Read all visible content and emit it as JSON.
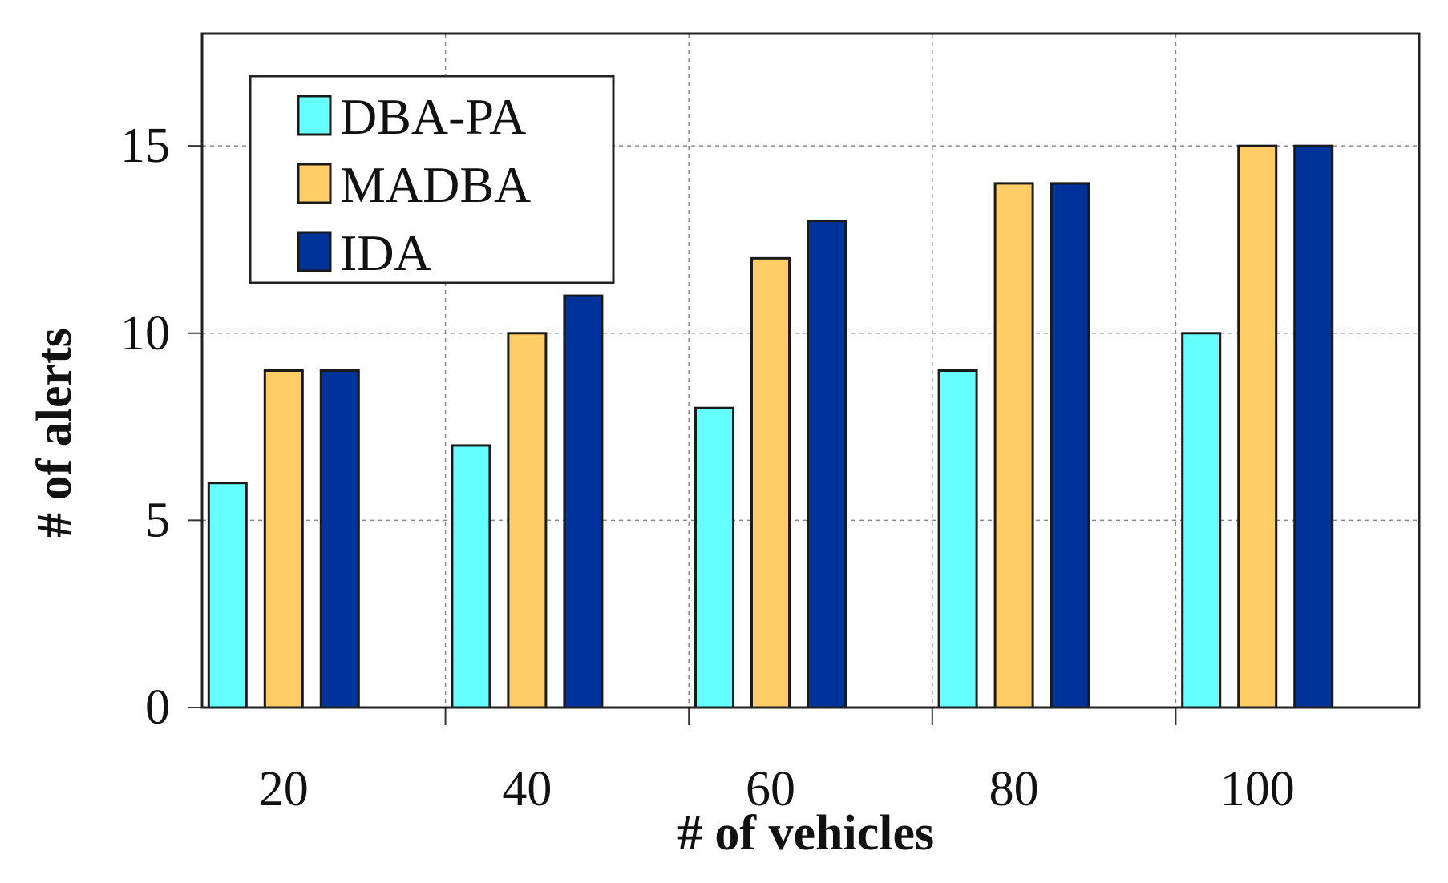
{
  "chart_data": {
    "type": "bar",
    "title": "",
    "xlabel": "# of vehicles",
    "ylabel": "# of alerts",
    "categories": [
      "20",
      "40",
      "60",
      "80",
      "100"
    ],
    "series": [
      {
        "name": "DBA-PA",
        "color": "#66ffff",
        "values": [
          6,
          7,
          8,
          9,
          10
        ]
      },
      {
        "name": "MADBA",
        "color": "#ffcc66",
        "values": [
          9,
          10,
          12,
          14,
          15
        ]
      },
      {
        "name": "IDA",
        "color": "#003399",
        "values": [
          9,
          11,
          13,
          14,
          15
        ]
      }
    ],
    "ylim": [
      0,
      18
    ],
    "yticks": [
      0,
      5,
      10,
      15
    ],
    "grid": true,
    "legend_position": "top-left"
  }
}
